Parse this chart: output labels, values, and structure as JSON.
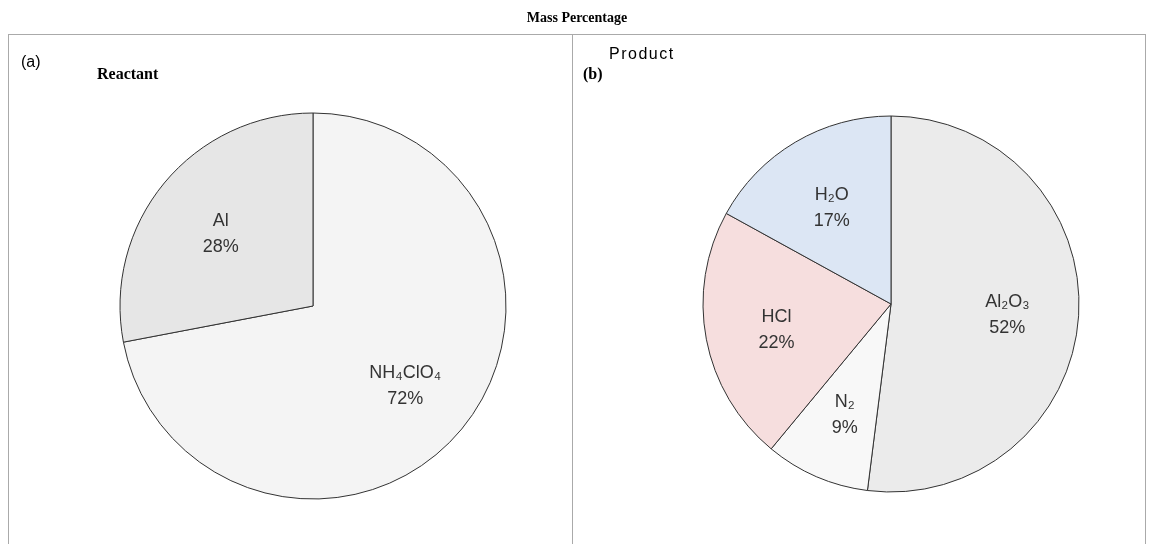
{
  "chart_data": [
    {
      "type": "pie",
      "title": "Mass Percentage",
      "subtitle": "Reactant",
      "annotations": [
        "(a)"
      ],
      "categories": [
        "NH₄ClO₄",
        "Al"
      ],
      "values": [
        72,
        28
      ],
      "value_labels": [
        "72%",
        "28%"
      ],
      "colors": [
        "#f4f4f4",
        "#e6e6e6"
      ],
      "legend": false
    },
    {
      "type": "pie",
      "subtitle": "Product",
      "annotations": [
        "(b)"
      ],
      "categories": [
        "Al₂O₃",
        "N₂",
        "HCl",
        "H₂O"
      ],
      "values": [
        52,
        9,
        22,
        17
      ],
      "value_labels": [
        "52%",
        "9%",
        "22%",
        "17%"
      ],
      "colors": [
        "#ebebeb",
        "#f8f8f8",
        "#f6dede",
        "#dce6f4"
      ],
      "legend": false
    }
  ]
}
